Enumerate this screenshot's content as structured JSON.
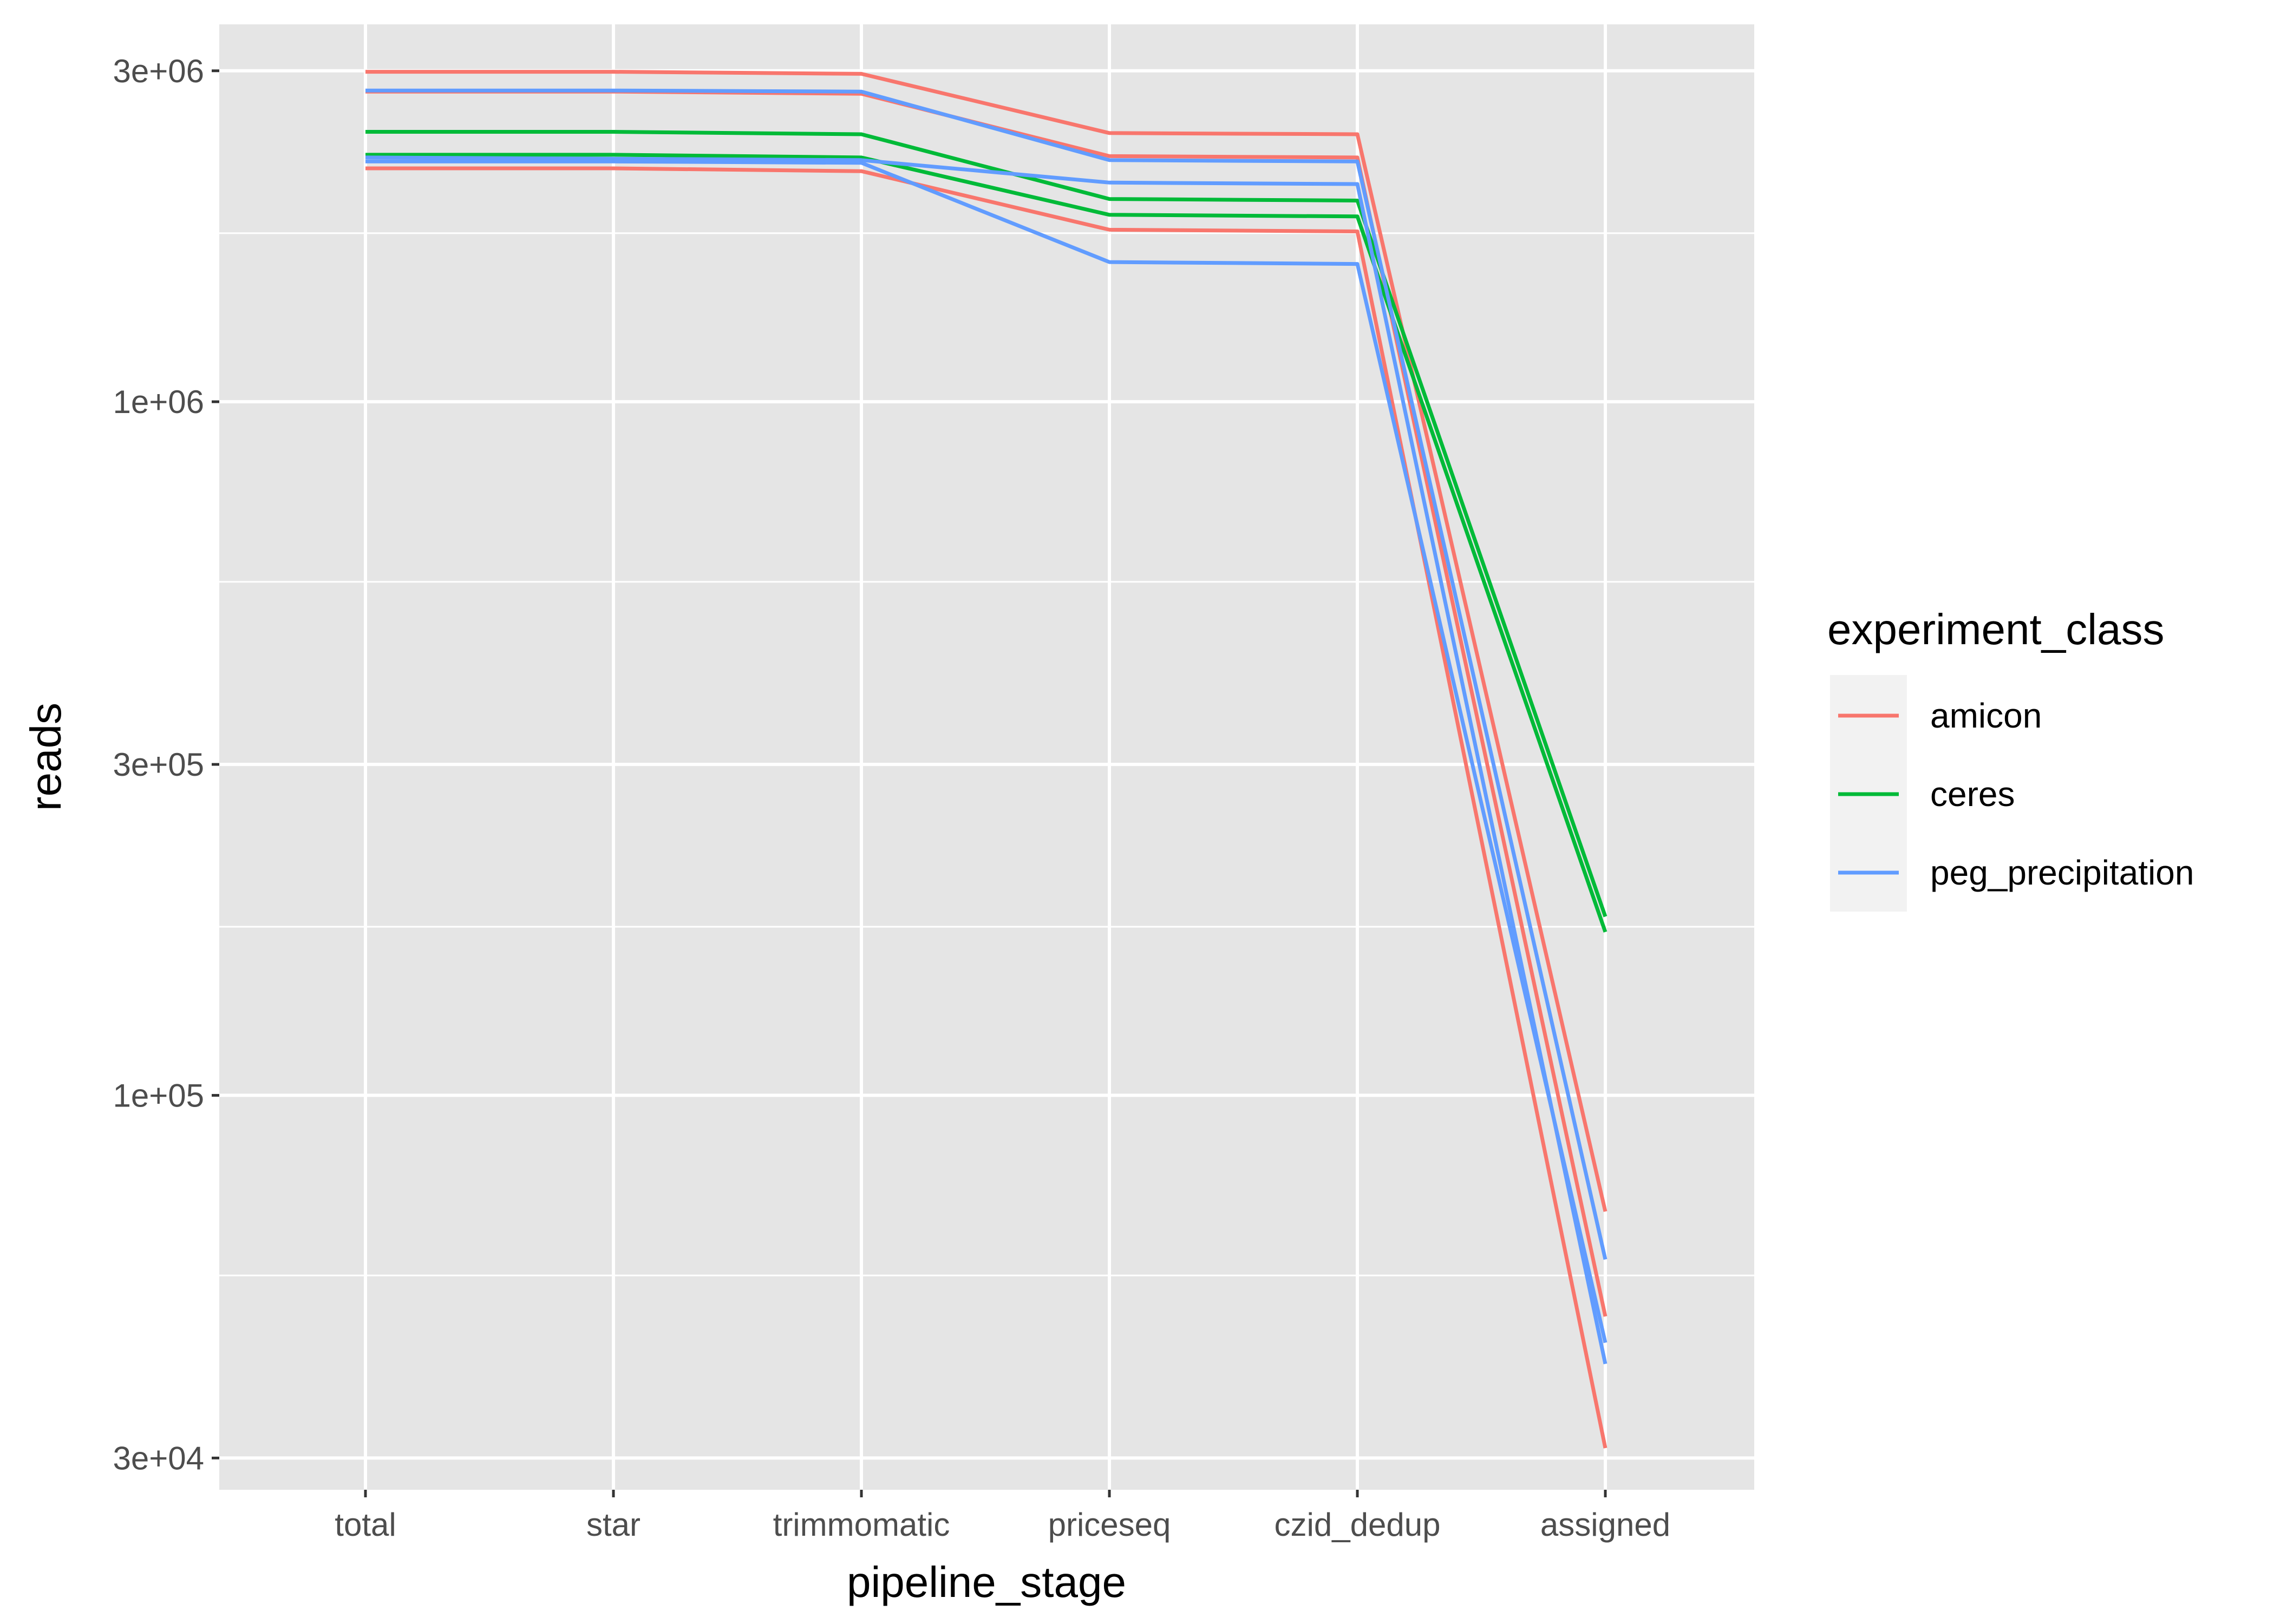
{
  "chart_data": {
    "type": "line",
    "title": "",
    "xlabel": "pipeline_stage",
    "ylabel": "reads",
    "y_scale": "log10",
    "ylim": [
      27000,
      3500000
    ],
    "y_ticks": [
      30000,
      100000,
      300000,
      1000000,
      3000000
    ],
    "y_tick_labels": [
      "3e+04",
      "1e+05",
      "3e+05",
      "1e+06",
      "3e+06"
    ],
    "y_minor_ticks": [
      55000,
      175000,
      550000,
      1750000
    ],
    "categories": [
      "total",
      "star",
      "trimmomatic",
      "priceseq",
      "czid_dedup",
      "assigned"
    ],
    "grid": true,
    "background": "#e5e5e5",
    "grid_color": "#ffffff",
    "legend": {
      "title": "experiment_class",
      "position": "right",
      "entries": [
        {
          "label": "amicon",
          "color": "#f8766d"
        },
        {
          "label": "ceres",
          "color": "#00ba38"
        },
        {
          "label": "peg_precipitation",
          "color": "#619cff"
        }
      ]
    },
    "series": [
      {
        "group": "amicon",
        "color": "#f8766d",
        "values": [
          2990000,
          2990000,
          2970000,
          2440000,
          2430000,
          68000
        ]
      },
      {
        "group": "amicon",
        "color": "#f8766d",
        "values": [
          2800000,
          2800000,
          2780000,
          2260000,
          2250000,
          48000
        ]
      },
      {
        "group": "amicon",
        "color": "#f8766d",
        "values": [
          2170000,
          2170000,
          2150000,
          1770000,
          1760000,
          31000
        ]
      },
      {
        "group": "ceres",
        "color": "#00ba38",
        "values": [
          2450000,
          2450000,
          2430000,
          1960000,
          1950000,
          181000
        ]
      },
      {
        "group": "ceres",
        "color": "#00ba38",
        "values": [
          2270000,
          2270000,
          2250000,
          1860000,
          1850000,
          172000
        ]
      },
      {
        "group": "peg_precipitation",
        "color": "#619cff",
        "values": [
          2810000,
          2810000,
          2800000,
          2230000,
          2220000,
          58000
        ]
      },
      {
        "group": "peg_precipitation",
        "color": "#619cff",
        "values": [
          2250000,
          2240000,
          2230000,
          2070000,
          2060000,
          41000
        ]
      },
      {
        "group": "peg_precipitation",
        "color": "#619cff",
        "values": [
          2220000,
          2220000,
          2210000,
          1590000,
          1580000,
          44000
        ]
      }
    ]
  }
}
